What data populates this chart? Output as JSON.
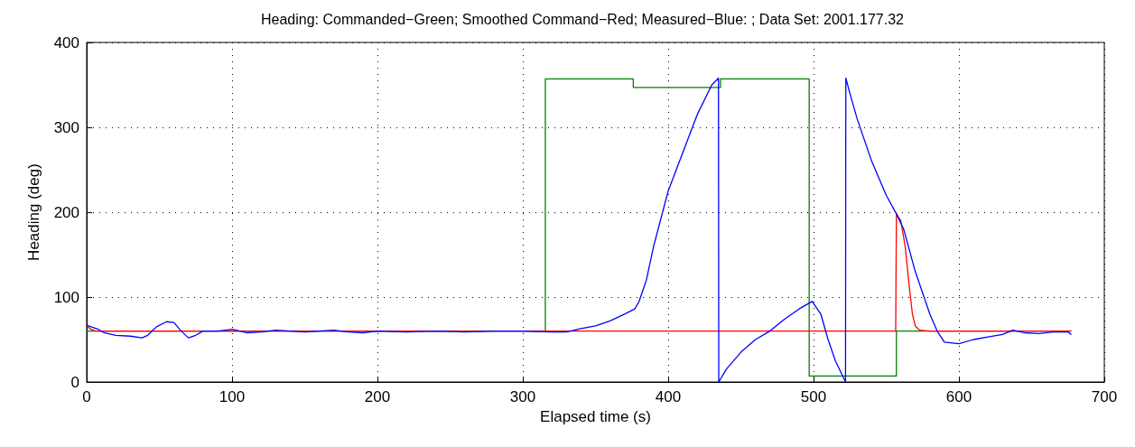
{
  "chart_data": {
    "type": "line",
    "title": "Heading: Commanded−Green; Smoothed Command−Red; Measured−Blue: ; Data Set: 2001.177.32",
    "xlabel": "Elapsed time (s)",
    "ylabel": "Heading (deg)",
    "xlim": [
      0,
      700
    ],
    "xticks": [
      0,
      100,
      200,
      300,
      400,
      500,
      600,
      700
    ],
    "ylim": [
      0,
      400
    ],
    "yticks": [
      0,
      100,
      200,
      300,
      400
    ],
    "grid": true,
    "marker": "none",
    "line_style": "solid",
    "series": [
      {
        "color": "#008000",
        "x": [
          0,
          315.5,
          315.5,
          376,
          376,
          436,
          436,
          497,
          497,
          557,
          557,
          677
        ],
        "values": [
          60,
          60,
          357,
          357,
          347,
          347,
          357,
          357,
          7,
          7,
          60,
          60
        ]
      },
      {
        "color": "#ff0000",
        "x": [
          0,
          3,
          6,
          556.5,
          557,
          560,
          563,
          566,
          568,
          570,
          573,
          580,
          677
        ],
        "values": [
          66,
          62,
          60,
          60,
          198,
          190,
          160,
          110,
          80,
          66,
          61,
          60,
          60
        ]
      },
      {
        "color": "#0000ff",
        "x": [
          0,
          3,
          8,
          12,
          20,
          30,
          38,
          42,
          48,
          55,
          60,
          65,
          70,
          75,
          80,
          90,
          100,
          110,
          120,
          130,
          140,
          150,
          160,
          170,
          180,
          190,
          200,
          220,
          240,
          260,
          280,
          300,
          320,
          330,
          340,
          350,
          360,
          370,
          377,
          380,
          385,
          390,
          400,
          410,
          420,
          430,
          434.6,
          434.8,
          440,
          450,
          460,
          470,
          480,
          490,
          497,
          499,
          505,
          510,
          515,
          522,
          522.2,
          525,
          530,
          540,
          550,
          557,
          562,
          570,
          580,
          585,
          590,
          600,
          610,
          620,
          630,
          637,
          645,
          655,
          665,
          675,
          677
        ],
        "values": [
          67,
          65,
          62,
          58,
          55,
          54,
          52,
          55,
          65,
          71,
          70,
          60,
          52,
          55,
          60,
          60,
          62,
          58,
          59,
          61,
          60,
          59,
          60,
          61,
          59,
          58,
          60,
          59,
          60,
          59,
          60,
          60,
          59,
          59,
          63,
          66,
          72,
          80,
          86,
          95,
          120,
          160,
          225,
          270,
          315,
          350,
          358,
          0,
          15,
          35,
          50,
          60,
          74,
          86,
          93,
          95,
          80,
          50,
          25,
          0,
          358,
          340,
          310,
          260,
          220,
          198,
          180,
          130,
          80,
          60,
          47,
          45,
          50,
          53,
          56,
          61,
          58,
          57,
          59,
          59,
          56
        ]
      }
    ]
  }
}
